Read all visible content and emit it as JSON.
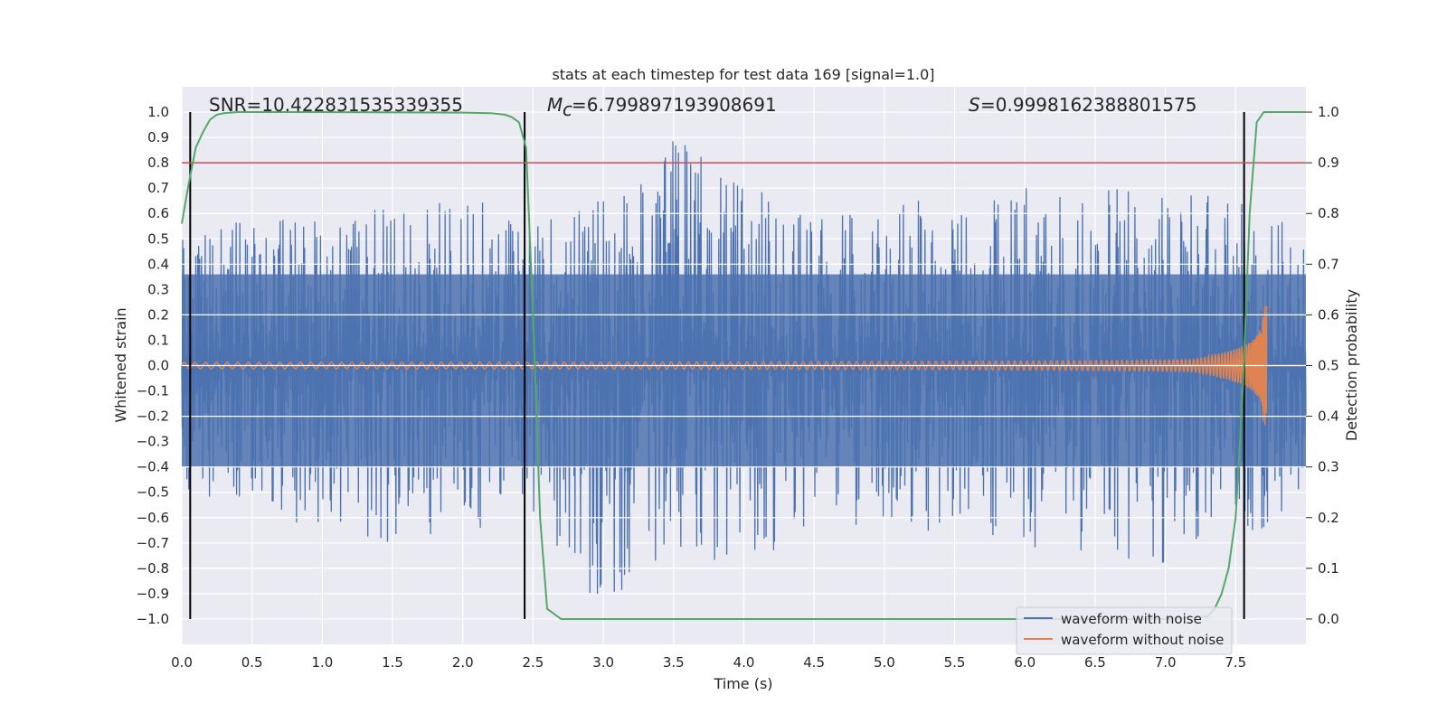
{
  "chart_data": {
    "type": "line",
    "title": "stats at each timestep for test data 169 [signal=1.0]",
    "xlabel": "Time (s)",
    "ylabel": "Whitened strain",
    "y2label": "Detection probability",
    "xlim": [
      0.0,
      8.0
    ],
    "ylim": [
      -1.1,
      1.1
    ],
    "y2lim": [
      -0.05,
      1.05
    ],
    "xticks": [
      "0.0",
      "0.5",
      "1.0",
      "1.5",
      "2.0",
      "2.5",
      "3.0",
      "3.5",
      "4.0",
      "4.5",
      "5.0",
      "5.5",
      "6.0",
      "6.5",
      "7.0",
      "7.5"
    ],
    "yticks": [
      "1.0",
      "0.9",
      "0.8",
      "0.7",
      "0.6",
      "0.5",
      "0.4",
      "0.3",
      "0.2",
      "0.1",
      "0.0",
      "-0.1",
      "-0.2",
      "-0.3",
      "-0.4",
      "-0.5",
      "-0.6",
      "-0.7",
      "-0.8",
      "-0.9",
      "-1.0"
    ],
    "y2ticks": [
      "1.0",
      "0.9",
      "0.8",
      "0.7",
      "0.6",
      "0.5",
      "0.4",
      "0.3",
      "0.2",
      "0.1",
      "0.0"
    ],
    "grid": true,
    "legend_position": "lower-right",
    "annotations": {
      "snr": "SNR=10.422831535339355",
      "mc": "=6.799897193908691",
      "s": "=0.9998162388801575"
    },
    "threshold": 0.9,
    "vertical_lines_s": [
      0.06,
      2.44,
      7.56
    ],
    "series": [
      {
        "name": "waveform with noise",
        "color": "#4c72b0",
        "sampled_envelope": {
          "x": [
            0.0,
            0.5,
            1.0,
            1.5,
            2.0,
            2.5,
            3.0,
            3.5,
            4.0,
            4.5,
            5.0,
            5.5,
            6.0,
            6.5,
            7.0,
            7.5,
            8.0
          ],
          "upper": [
            0.5,
            0.62,
            0.6,
            0.65,
            0.68,
            0.55,
            0.66,
            0.9,
            0.72,
            0.6,
            0.65,
            0.66,
            0.7,
            0.72,
            0.68,
            0.7,
            0.6
          ],
          "lower": [
            -0.55,
            -0.6,
            -0.65,
            -0.72,
            -0.68,
            -0.58,
            -1.0,
            -0.74,
            -0.8,
            -0.66,
            -0.64,
            -0.66,
            -0.72,
            -0.76,
            -0.78,
            -0.72,
            -0.58
          ]
        }
      },
      {
        "name": "waveform without noise",
        "color": "#dd8452",
        "chirp": {
          "start_amplitude": 0.012,
          "peak_amplitude": 0.24,
          "peak_time": 7.7,
          "end_time": 7.72
        }
      },
      {
        "name": "detection probability",
        "color": "#55a868",
        "x": [
          0.0,
          0.05,
          0.1,
          0.15,
          0.2,
          0.25,
          0.3,
          0.4,
          0.6,
          1.0,
          2.0,
          2.2,
          2.3,
          2.35,
          2.4,
          2.45,
          2.5,
          2.55,
          2.6,
          2.65,
          2.7,
          2.8,
          3.0,
          5.0,
          7.0,
          7.3,
          7.35,
          7.4,
          7.45,
          7.5,
          7.55,
          7.6,
          7.65,
          7.7,
          7.75,
          8.0
        ],
        "y": [
          0.78,
          0.86,
          0.93,
          0.96,
          0.985,
          0.995,
          0.998,
          1.0,
          1.0,
          1.0,
          0.999,
          0.998,
          0.995,
          0.99,
          0.98,
          0.93,
          0.6,
          0.2,
          0.02,
          0.01,
          0.0,
          0.0,
          0.0,
          0.0,
          0.0,
          0.005,
          0.02,
          0.05,
          0.1,
          0.2,
          0.45,
          0.8,
          0.98,
          1.0,
          1.0,
          1.0
        ]
      }
    ]
  }
}
